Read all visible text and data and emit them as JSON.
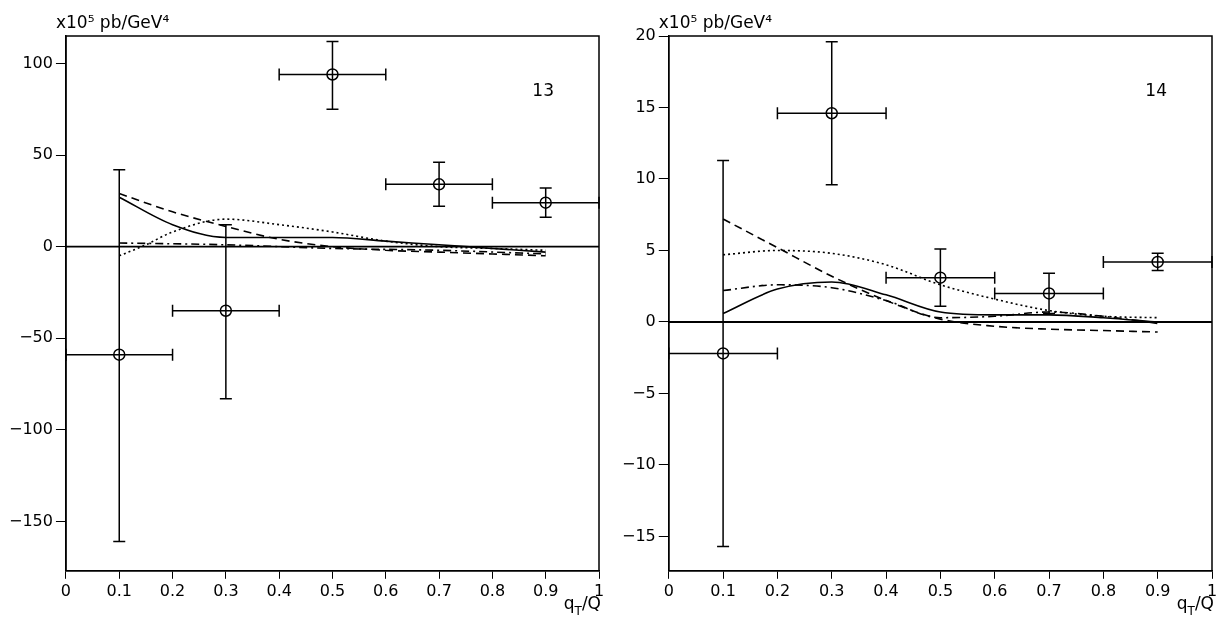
{
  "chart_data": [
    {
      "type": "line",
      "ylabel": "x10⁵ pb/GeV⁴",
      "xlabel": "q$_{T}$/Q",
      "annotations": [
        "13"
      ],
      "xlim": [
        0,
        1
      ],
      "xticks": [
        0,
        0.1,
        0.2,
        0.3,
        0.4,
        0.5,
        0.6,
        0.7,
        0.8,
        0.9,
        1
      ],
      "ylim": [
        -177,
        115
      ],
      "yticks": [
        -150,
        -100,
        -50,
        0,
        50,
        100
      ],
      "grid": false,
      "legend": false,
      "ref_lines": [
        {
          "axis": "y",
          "value": 0,
          "color": "#000000"
        }
      ],
      "series": [
        {
          "type": "scatter",
          "marker": "circle",
          "color": "#000000",
          "x": [
            0.1,
            0.3,
            0.5,
            0.7,
            0.9
          ],
          "values": [
            -59,
            -35,
            94,
            34,
            24
          ],
          "errors": [
            [
              -161,
              42
            ],
            [
              -83,
              12
            ],
            [
              75,
              112
            ],
            [
              22,
              46
            ],
            [
              16,
              32
            ]
          ],
          "xerrors": [
            0.1,
            0.1,
            0.1,
            0.1,
            0.1
          ]
        },
        {
          "line_style": "solid",
          "color": "#000000",
          "x": [
            0.1,
            0.2,
            0.3,
            0.4,
            0.5,
            0.6,
            0.7,
            0.8,
            0.9
          ],
          "values": [
            27,
            12,
            5,
            5,
            5,
            3,
            1,
            -1,
            -3
          ]
        },
        {
          "line_style": "dashed",
          "color": "#000000",
          "x": [
            0.1,
            0.2,
            0.3,
            0.4,
            0.5,
            0.6,
            0.7,
            0.8,
            0.9
          ],
          "values": [
            29,
            19,
            11,
            4,
            0,
            -2,
            -3,
            -4,
            -5
          ]
        },
        {
          "line_style": "dotted",
          "color": "#000000",
          "x": [
            0.1,
            0.15,
            0.2,
            0.3,
            0.4,
            0.5,
            0.6,
            0.7,
            0.8,
            0.9
          ],
          "values": [
            -5,
            1,
            8,
            15,
            12,
            8,
            3,
            0,
            -1,
            -2
          ]
        },
        {
          "line_style": "dashdot",
          "color": "#000000",
          "x": [
            0.1,
            0.3,
            0.5,
            0.7,
            0.9
          ],
          "values": [
            2,
            1,
            -1,
            -2,
            -4
          ]
        }
      ]
    },
    {
      "type": "line",
      "ylabel": "x10⁵ pb/GeV⁴",
      "xlabel": "q$_{T}$/Q",
      "annotations": [
        "14"
      ],
      "xlim": [
        0,
        1
      ],
      "xticks": [
        0,
        0.1,
        0.2,
        0.3,
        0.4,
        0.5,
        0.6,
        0.7,
        0.8,
        0.9,
        1
      ],
      "ylim": [
        -17.4,
        20
      ],
      "yticks": [
        -15,
        -10,
        -5,
        0,
        5,
        10,
        15,
        20
      ],
      "grid": false,
      "legend": false,
      "ref_lines": [
        {
          "axis": "y",
          "value": 0,
          "color": "#000000"
        }
      ],
      "series": [
        {
          "type": "scatter",
          "marker": "circle",
          "color": "#000000",
          "x": [
            0.1,
            0.3,
            0.5,
            0.7,
            0.9
          ],
          "values": [
            -2.2,
            14.6,
            3.1,
            2.0,
            4.2
          ],
          "errors": [
            [
              -15.7,
              11.3
            ],
            [
              9.6,
              19.6
            ],
            [
              1.1,
              5.1
            ],
            [
              0.6,
              3.4
            ],
            [
              3.6,
              4.8
            ]
          ],
          "xerrors": [
            0.1,
            0.1,
            0.1,
            0.1,
            0.1
          ]
        },
        {
          "line_style": "solid",
          "color": "#000000",
          "x": [
            0.1,
            0.2,
            0.3,
            0.4,
            0.5,
            0.6,
            0.7,
            0.8,
            0.9
          ],
          "values": [
            0.6,
            2.3,
            2.8,
            1.9,
            0.7,
            0.5,
            0.5,
            0.3,
            0
          ]
        },
        {
          "line_style": "dashed",
          "color": "#000000",
          "x": [
            0.1,
            0.2,
            0.3,
            0.4,
            0.5,
            0.6,
            0.7,
            0.8,
            0.9
          ],
          "values": [
            7.2,
            5.2,
            3.2,
            1.5,
            0.2,
            -0.3,
            -0.5,
            -0.6,
            -0.7
          ]
        },
        {
          "line_style": "dotted",
          "color": "#000000",
          "x": [
            0.1,
            0.2,
            0.3,
            0.4,
            0.5,
            0.6,
            0.7,
            0.8,
            0.9
          ],
          "values": [
            4.7,
            5.0,
            4.8,
            4.0,
            2.6,
            1.6,
            0.8,
            0.4,
            0.3
          ]
        },
        {
          "line_style": "dashdot",
          "color": "#000000",
          "x": [
            0.1,
            0.2,
            0.3,
            0.4,
            0.5,
            0.6,
            0.7,
            0.8,
            0.9
          ],
          "values": [
            2.2,
            2.6,
            2.4,
            1.5,
            0.3,
            0.4,
            0.7,
            0.4,
            -0.1
          ]
        }
      ]
    }
  ]
}
